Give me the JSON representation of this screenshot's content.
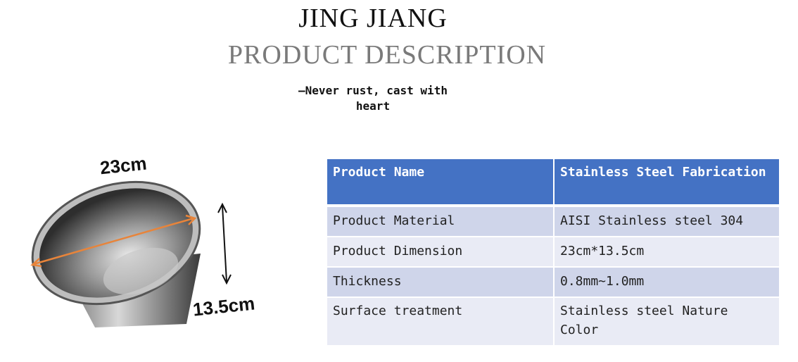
{
  "header": {
    "brand": "JING JIANG",
    "title": "PRODUCT DESCRIPTION",
    "tagline": "—Never rust, cast with heart"
  },
  "image": {
    "width_label": "23cm",
    "height_label": "13.5cm",
    "arrow_color": "#e8843a"
  },
  "spec_table": {
    "header": {
      "label": "Product Name",
      "value": "Stainless Steel Fabrication"
    },
    "rows": [
      {
        "label": "Product Material",
        "value": "AISI Stainless steel 304"
      },
      {
        "label": "Product Dimension",
        "value": "23cm*13.5cm"
      },
      {
        "label": "Thickness",
        "value": "0.8mm~1.0mm"
      },
      {
        "label": "Surface treatment",
        "value": "Stainless steel Nature Color"
      }
    ],
    "colors": {
      "header": "#4472c4",
      "row_dark": "#cfd5ea",
      "row_light": "#e9ebf5"
    }
  }
}
